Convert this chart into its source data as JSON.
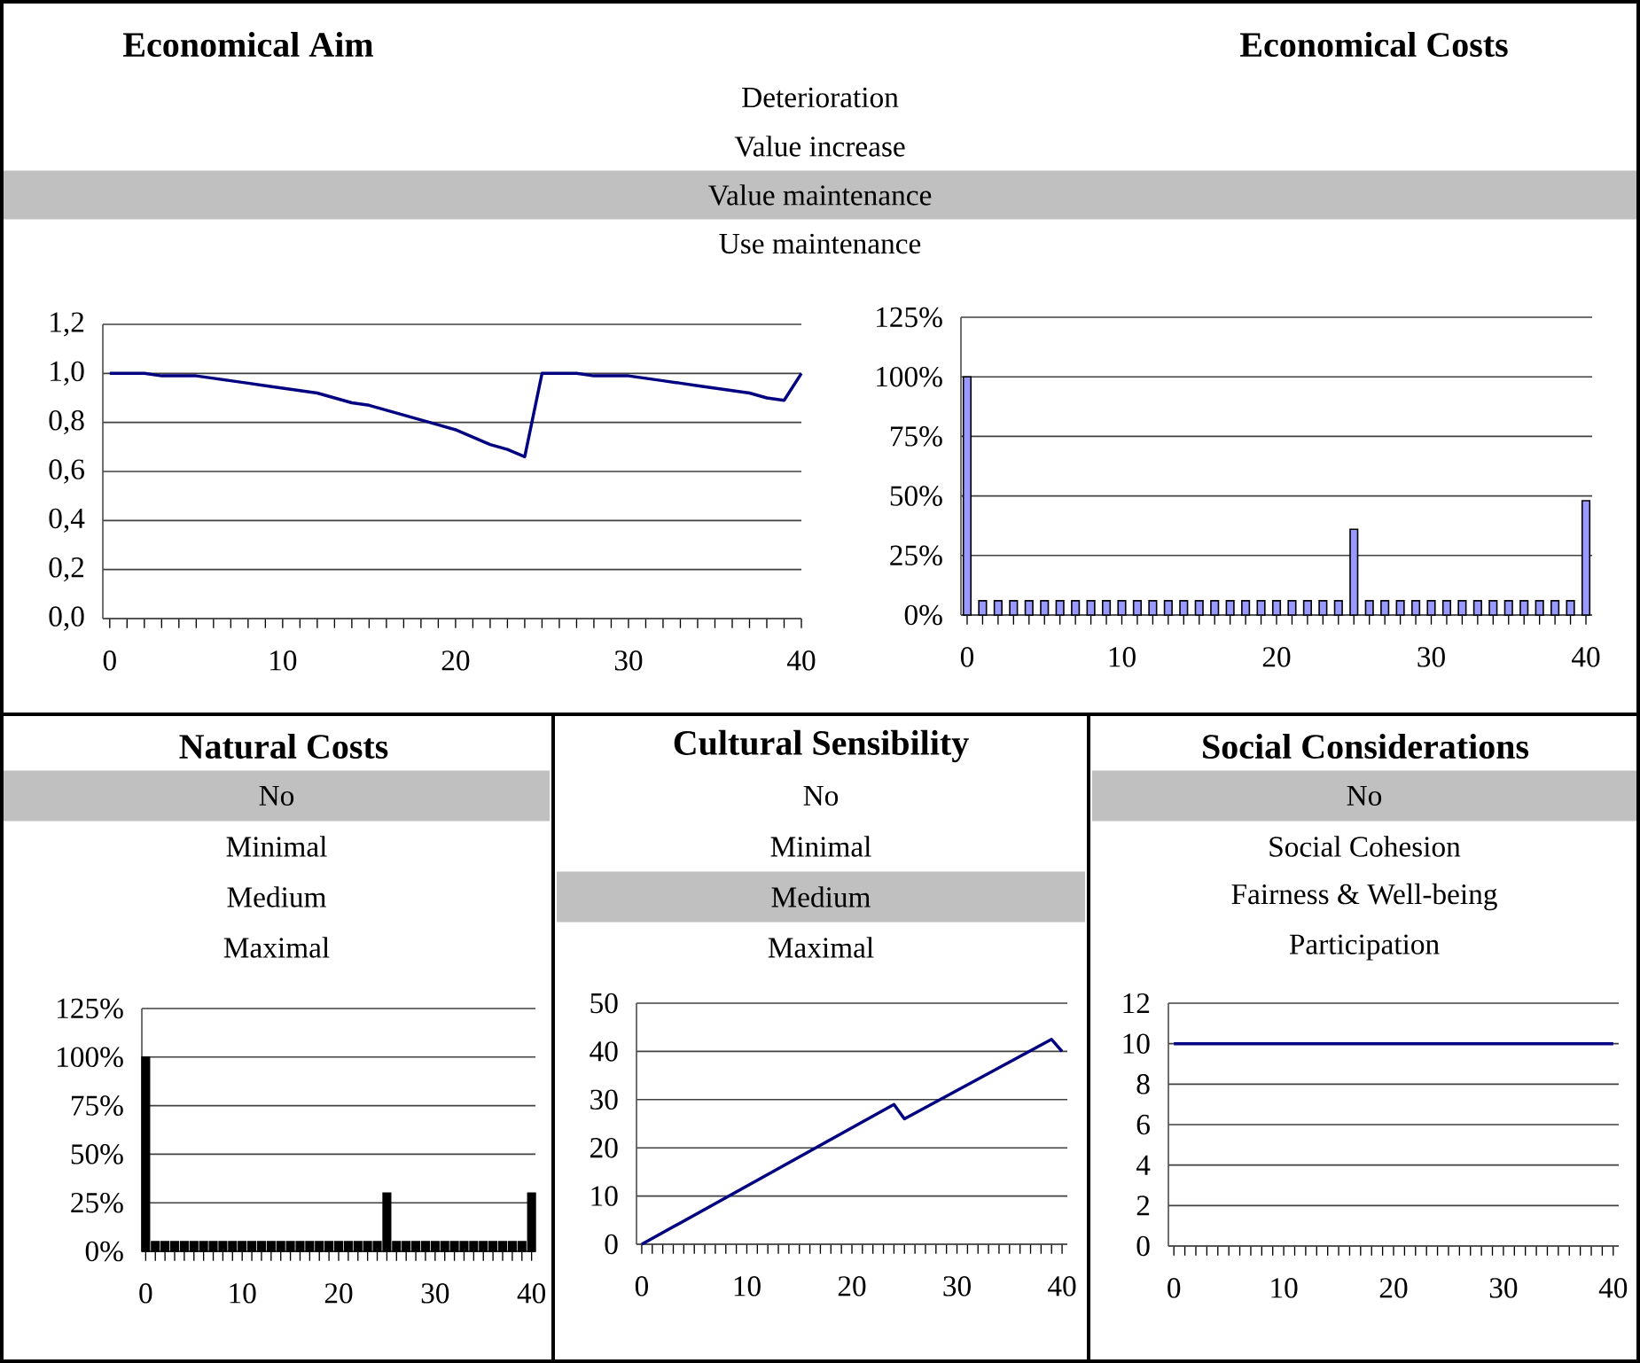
{
  "chart_data": [
    {
      "type": "line",
      "title": "Economical Aim",
      "color": "#000080",
      "x": [
        0,
        1,
        2,
        3,
        4,
        5,
        6,
        7,
        8,
        9,
        10,
        11,
        12,
        13,
        14,
        15,
        16,
        17,
        18,
        19,
        20,
        21,
        22,
        23,
        24,
        25,
        26,
        27,
        28,
        29,
        30,
        31,
        32,
        33,
        34,
        35,
        36,
        37,
        38,
        39,
        40
      ],
      "values": [
        1.0,
        1.0,
        1.0,
        0.99,
        0.99,
        0.99,
        0.98,
        0.97,
        0.96,
        0.95,
        0.94,
        0.93,
        0.92,
        0.9,
        0.88,
        0.87,
        0.85,
        0.83,
        0.81,
        0.79,
        0.77,
        0.74,
        0.71,
        0.69,
        0.66,
        1.0,
        1.0,
        1.0,
        0.99,
        0.99,
        0.99,
        0.98,
        0.97,
        0.96,
        0.95,
        0.94,
        0.93,
        0.92,
        0.9,
        0.89,
        1.0
      ],
      "xlim": [
        -0.4,
        40
      ],
      "xticks": [
        0,
        10,
        20,
        30,
        40
      ],
      "ylim": [
        0,
        1.2
      ],
      "yticks": [
        {
          "value": 0,
          "label": "0,0"
        },
        {
          "value": 0.2,
          "label": "0,2"
        },
        {
          "value": 0.4,
          "label": "0,4"
        },
        {
          "value": 0.6,
          "label": "0,6"
        },
        {
          "value": 0.8,
          "label": "0,8"
        },
        {
          "value": 1.0,
          "label": "1,0"
        },
        {
          "value": 1.2,
          "label": "1,2"
        }
      ],
      "grid": "y"
    },
    {
      "type": "bar",
      "title": "Economical Costs",
      "color": "#9999ff",
      "x": [
        0,
        1,
        2,
        3,
        4,
        5,
        6,
        7,
        8,
        9,
        10,
        11,
        12,
        13,
        14,
        15,
        16,
        17,
        18,
        19,
        20,
        21,
        22,
        23,
        24,
        25,
        26,
        27,
        28,
        29,
        30,
        31,
        32,
        33,
        34,
        35,
        36,
        37,
        38,
        39,
        40
      ],
      "values": [
        100,
        6,
        6,
        6,
        6,
        6,
        6,
        6,
        6,
        6,
        6,
        6,
        6,
        6,
        6,
        6,
        6,
        6,
        6,
        6,
        6,
        6,
        6,
        6,
        6,
        36,
        6,
        6,
        6,
        6,
        6,
        6,
        6,
        6,
        6,
        6,
        6,
        6,
        6,
        6,
        48
      ],
      "xlim": [
        -0.4,
        40.4
      ],
      "xticks": [
        0,
        10,
        20,
        30,
        40
      ],
      "ylim": [
        0,
        125
      ],
      "yticks": [
        {
          "value": 0,
          "label": "0%"
        },
        {
          "value": 25,
          "label": "25%"
        },
        {
          "value": 50,
          "label": "50%"
        },
        {
          "value": 75,
          "label": "75%"
        },
        {
          "value": 100,
          "label": "100%"
        },
        {
          "value": 125,
          "label": "125%"
        }
      ],
      "grid": "y"
    },
    {
      "type": "other",
      "categories": [
        "Deterioration",
        "Value increase",
        "Value maintenance",
        "Use maintenance"
      ],
      "colors": [
        "#ffffff",
        "#ffffff",
        "#c0c0c0",
        "#ffffff"
      ]
    },
    {
      "type": "other",
      "title": "Natural Costs",
      "categories": [
        "No",
        "Minimal",
        "Medium",
        "Maximal"
      ],
      "colors": [
        "#c0c0c0",
        "#ffffff",
        "#ffffff",
        "#ffffff"
      ]
    },
    {
      "type": "bar",
      "color": "#000000",
      "x": [
        0,
        1,
        2,
        3,
        4,
        5,
        6,
        7,
        8,
        9,
        10,
        11,
        12,
        13,
        14,
        15,
        16,
        17,
        18,
        19,
        20,
        21,
        22,
        23,
        24,
        25,
        26,
        27,
        28,
        29,
        30,
        31,
        32,
        33,
        34,
        35,
        36,
        37,
        38,
        39,
        40
      ],
      "values": [
        100,
        5,
        5,
        5,
        5,
        5,
        5,
        5,
        5,
        5,
        5,
        5,
        5,
        5,
        5,
        5,
        5,
        5,
        5,
        5,
        5,
        5,
        5,
        5,
        5,
        30,
        5,
        5,
        5,
        5,
        5,
        5,
        5,
        5,
        5,
        5,
        5,
        5,
        5,
        5,
        30
      ],
      "xlim": [
        -0.4,
        40.4
      ],
      "xticks": [
        0,
        10,
        20,
        30,
        40
      ],
      "ylim": [
        0,
        125
      ],
      "yticks": [
        {
          "value": 0,
          "label": "0%"
        },
        {
          "value": 25,
          "label": "25%"
        },
        {
          "value": 50,
          "label": "50%"
        },
        {
          "value": 75,
          "label": "75%"
        },
        {
          "value": 100,
          "label": "100%"
        },
        {
          "value": 125,
          "label": "125%"
        }
      ],
      "grid": "y"
    },
    {
      "type": "other",
      "title": "Cultural Sensibility",
      "categories": [
        "No",
        "Minimal",
        "Medium",
        "Maximal"
      ],
      "colors": [
        "#ffffff",
        "#ffffff",
        "#c0c0c0",
        "#ffffff"
      ]
    },
    {
      "type": "line",
      "color": "#000080",
      "x": [
        0,
        24,
        25,
        39,
        40
      ],
      "values": [
        0,
        29,
        26,
        42.5,
        40
      ],
      "xlim": [
        -0.5,
        40.5
      ],
      "xticks": [
        0,
        10,
        20,
        30,
        40
      ],
      "ylim": [
        0,
        50
      ],
      "yticks": [
        0,
        10,
        20,
        30,
        40,
        50
      ],
      "grid": "y"
    },
    {
      "type": "other",
      "title": "Social Considerations",
      "categories": [
        "No",
        "Social Cohesion",
        "Fairness & Well-being",
        "Participation"
      ],
      "colors": [
        "#c0c0c0",
        "#ffffff",
        "#ffffff",
        "#ffffff"
      ]
    },
    {
      "type": "line",
      "color": "#000080",
      "x": [
        0,
        40
      ],
      "values": [
        10,
        10
      ],
      "xlim": [
        -0.5,
        40.5
      ],
      "xticks": [
        0,
        10,
        20,
        30,
        40
      ],
      "ylim": [
        0,
        12
      ],
      "yticks": [
        0,
        2,
        4,
        6,
        8,
        10,
        12
      ],
      "grid": "y"
    }
  ]
}
